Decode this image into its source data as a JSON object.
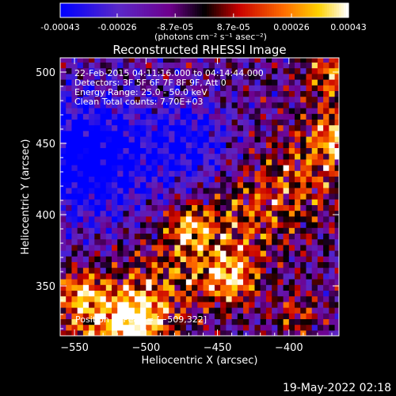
{
  "colorbar": {
    "tick_labels": [
      "-0.00043",
      "-0.00026",
      "-8.7e-05",
      "8.7e-05",
      "0.00026",
      "0.00043"
    ],
    "tick_values": [
      -0.00043,
      -0.00026,
      -8.7e-05,
      8.7e-05,
      0.00026,
      0.00043
    ],
    "range": [
      -0.00043,
      0.00043
    ],
    "unit_label": "(photons cm⁻² s⁻¹ asec⁻²)",
    "colors": [
      "#0000ff",
      "#6020c0",
      "#800080",
      "#000000",
      "#c00000",
      "#ff6000",
      "#ffd000",
      "#ffffff"
    ]
  },
  "chart_data": {
    "type": "heatmap",
    "title": "Reconstructed RHESSI Image",
    "xlabel": "Heliocentric X (arcsec)",
    "ylabel": "Heliocentric Y (arcsec)",
    "xlim": [
      -560,
      -365
    ],
    "ylim": [
      315,
      510
    ],
    "x_ticks": [
      -550,
      -500,
      -450,
      -400
    ],
    "y_ticks": [
      350,
      400,
      450,
      500
    ],
    "x_tick_labels": [
      "−550",
      "−500",
      "−450",
      "−400"
    ],
    "y_tick_labels": [
      "350",
      "400",
      "450",
      "500"
    ],
    "annotations": [
      "22-Feb-2015 04:11:16.000 to 04:14:44.000",
      "Detectors: 3F 5F 6F 7F 8F 9F, Att 0",
      "Energy Range: 25.0 - 50.0 keV",
      "Clean     Total counts: 7.70E+03"
    ],
    "peak_label": "Position of Peak = [−509,322]",
    "peak_position": [
      -509,
      322
    ],
    "date_span": "22-Feb-2015 04:11:16.000 to 04:14:44.000",
    "detectors": "3F 5F 6F 7F 8F 9F",
    "attenuator": "Att 0",
    "energy_range_keV": [
      25.0,
      50.0
    ],
    "algorithm": "Clean",
    "total_counts": 7700
  },
  "footer": {
    "timestamp": "19-May-2022 02:18"
  }
}
